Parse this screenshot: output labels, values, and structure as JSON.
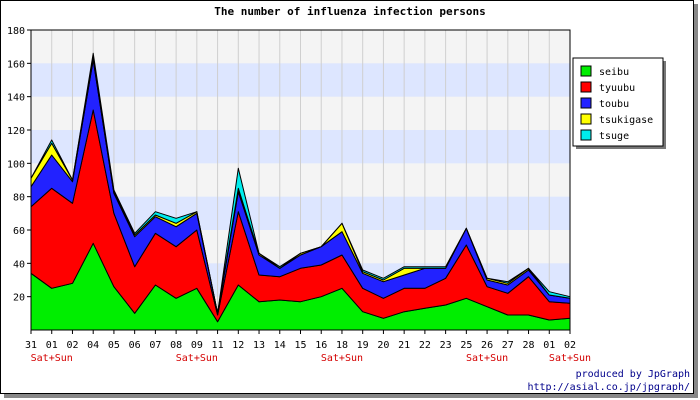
{
  "chart_data": {
    "type": "area",
    "stacked": true,
    "title": "The number of influenza infection persons",
    "xlabel": "",
    "ylabel": "",
    "ylim": [
      0,
      180
    ],
    "yticks": [
      20,
      40,
      60,
      80,
      100,
      120,
      140,
      160,
      180
    ],
    "grid": true,
    "legend_position": "right",
    "categories": [
      "31",
      "01",
      "02",
      "04",
      "05",
      "06",
      "07",
      "08",
      "09",
      "11",
      "12",
      "13",
      "14",
      "15",
      "16",
      "18",
      "19",
      "20",
      "21",
      "22",
      "23",
      "25",
      "26",
      "27",
      "28",
      "01",
      "02"
    ],
    "weekend_label": "Sat+Sun",
    "weekend_indices": [
      1,
      8,
      15,
      22,
      26
    ],
    "series": [
      {
        "name": "seibu",
        "color": "#00ee00",
        "values": [
          34,
          25,
          28,
          52,
          26,
          10,
          27,
          19,
          25,
          5,
          27,
          17,
          18,
          17,
          20,
          25,
          11,
          7,
          11,
          13,
          15,
          19,
          14,
          9,
          9,
          6,
          7
        ]
      },
      {
        "name": "tyuubu",
        "color": "#ff0000",
        "values": [
          40,
          60,
          48,
          80,
          44,
          28,
          31,
          31,
          35,
          4,
          44,
          16,
          14,
          20,
          19,
          20,
          14,
          12,
          14,
          12,
          16,
          32,
          12,
          13,
          23,
          11,
          9
        ]
      },
      {
        "name": "toubu",
        "color": "#2222ff",
        "values": [
          12,
          20,
          13,
          30,
          12,
          18,
          10,
          12,
          10,
          1,
          12,
          12,
          5,
          8,
          11,
          14,
          9,
          10,
          8,
          12,
          6,
          10,
          4,
          5,
          4,
          4,
          3
        ]
      },
      {
        "name": "tsukigase",
        "color": "#ffff00",
        "values": [
          5,
          7,
          1,
          2,
          1,
          1,
          1,
          2,
          1,
          0,
          2,
          1,
          0,
          1,
          0,
          5,
          1,
          1,
          4,
          0,
          0,
          0,
          1,
          1,
          1,
          0,
          0
        ]
      },
      {
        "name": "tsuge",
        "color": "#00eeee",
        "values": [
          0,
          2,
          0,
          2,
          1,
          1,
          2,
          3,
          0,
          0,
          12,
          0,
          1,
          0,
          0,
          0,
          1,
          1,
          1,
          1,
          1,
          0,
          0,
          1,
          0,
          2,
          1
        ]
      }
    ]
  },
  "credit": {
    "line1": "produced by JpGraph",
    "line2": "http://asial.co.jp/jpgraph/"
  }
}
